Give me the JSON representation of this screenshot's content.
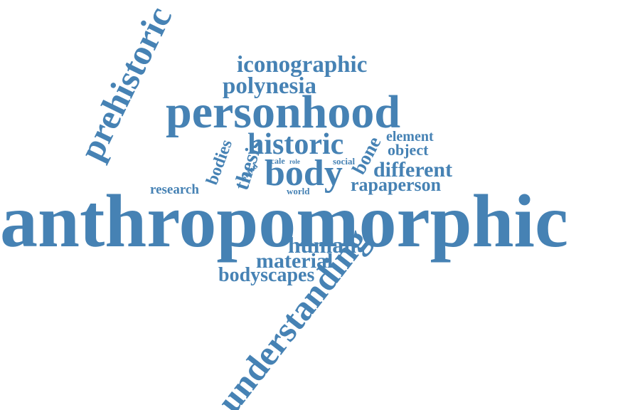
{
  "accent_color": "#4682b4",
  "background_color": "#ffffff",
  "words": {
    "anthropomorphic": "anthropomorphic",
    "personhood": "personhood",
    "understanding": "understanding",
    "prehistoric": "prehistoric",
    "historic": "historic",
    "body": "body",
    "iconographic": "iconographic",
    "polynesia": "polynesia",
    "human": "human",
    "material": "material",
    "bodyscapes": "bodyscapes",
    "rapaperson": "rapaperson",
    "different": "different",
    "object": "object",
    "element": "element",
    "bone": "bone",
    "thesis": "thesis",
    "bodies": "bodies",
    "research": "research",
    "island": "island",
    "scale": "scale",
    "role": "role",
    "social": "social",
    "world": "world"
  }
}
